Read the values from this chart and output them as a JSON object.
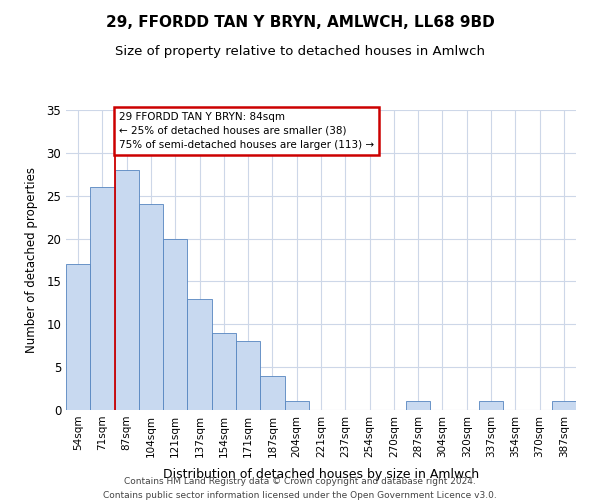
{
  "title": "29, FFORDD TAN Y BRYN, AMLWCH, LL68 9BD",
  "subtitle": "Size of property relative to detached houses in Amlwch",
  "xlabel": "Distribution of detached houses by size in Amlwch",
  "ylabel": "Number of detached properties",
  "bar_labels": [
    "54sqm",
    "71sqm",
    "87sqm",
    "104sqm",
    "121sqm",
    "137sqm",
    "154sqm",
    "171sqm",
    "187sqm",
    "204sqm",
    "221sqm",
    "237sqm",
    "254sqm",
    "270sqm",
    "287sqm",
    "304sqm",
    "320sqm",
    "337sqm",
    "354sqm",
    "370sqm",
    "387sqm"
  ],
  "bar_values": [
    17,
    26,
    28,
    24,
    20,
    13,
    9,
    8,
    4,
    1,
    0,
    0,
    0,
    0,
    1,
    0,
    0,
    1,
    0,
    0,
    1
  ],
  "bar_color": "#c8d9f0",
  "bar_edge_color": "#5585c0",
  "annotation_line1": "29 FFORDD TAN Y BRYN: 84sqm",
  "annotation_line2": "← 25% of detached houses are smaller (38)",
  "annotation_line3": "75% of semi-detached houses are larger (113) →",
  "annotation_box_color": "#ffffff",
  "annotation_box_edge": "#cc0000",
  "vline_color": "#cc0000",
  "ylim": [
    0,
    35
  ],
  "yticks": [
    0,
    5,
    10,
    15,
    20,
    25,
    30,
    35
  ],
  "footer1": "Contains HM Land Registry data © Crown copyright and database right 2024.",
  "footer2": "Contains public sector information licensed under the Open Government Licence v3.0.",
  "bg_color": "#ffffff",
  "grid_color": "#cdd7e8",
  "title_fontsize": 11,
  "subtitle_fontsize": 9.5
}
